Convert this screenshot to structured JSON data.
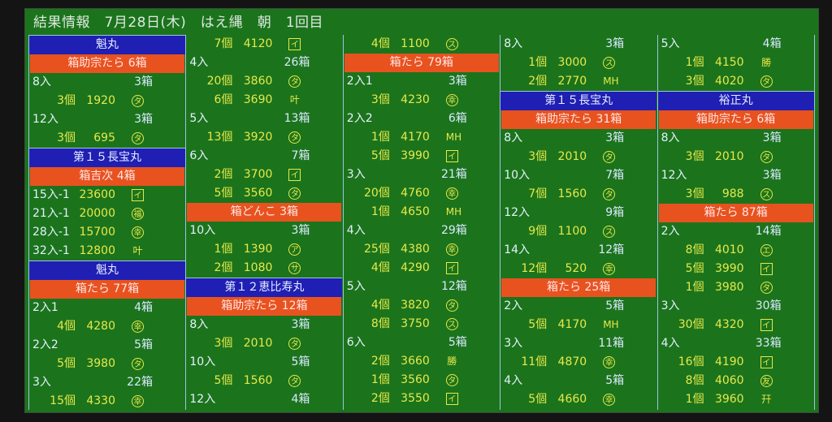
{
  "title": "結果情報　7月28日(木)　はえ縄　朝　1回目",
  "colors": {
    "background": "#1b741c",
    "ship_header": "#1f1fb4",
    "fish_header": "#e8521f",
    "price_text": "#e8e84a",
    "label_text": "#e6f0ff"
  },
  "columns": [
    [
      {
        "t": "ship",
        "text": "魁丸"
      },
      {
        "t": "fish",
        "text": "箱助宗たら 6箱"
      },
      {
        "t": "size",
        "label": "8入",
        "boxes": "3箱"
      },
      {
        "t": "lot",
        "qty": "3個",
        "price": "1920",
        "mark": "タ",
        "ms": "circle"
      },
      {
        "t": "size",
        "label": "12入",
        "boxes": "3箱"
      },
      {
        "t": "lot",
        "qty": "3個",
        "price": "695",
        "mark": "タ",
        "ms": "circle"
      },
      {
        "t": "ship",
        "text": "第１５長宝丸"
      },
      {
        "t": "fish",
        "text": "箱吉次 4箱"
      },
      {
        "t": "lot",
        "label": "15入-1",
        "price": "23600",
        "mark": "イ",
        "ms": "box"
      },
      {
        "t": "lot",
        "label": "21入-1",
        "price": "20000",
        "mark": "福",
        "ms": "circle"
      },
      {
        "t": "lot",
        "label": "28入-1",
        "price": "15700",
        "mark": "幸",
        "ms": "circle"
      },
      {
        "t": "lot",
        "label": "32入-1",
        "price": "12800",
        "mark": "叶",
        "ms": "plain"
      },
      {
        "t": "ship",
        "text": "魁丸"
      },
      {
        "t": "fish",
        "text": "箱たら 77箱"
      },
      {
        "t": "size",
        "label": "2入1",
        "boxes": "4箱"
      },
      {
        "t": "lot",
        "qty": "4個",
        "price": "4280",
        "mark": "幸",
        "ms": "circle"
      },
      {
        "t": "size",
        "label": "2入2",
        "boxes": "5箱"
      },
      {
        "t": "lot",
        "qty": "5個",
        "price": "3980",
        "mark": "タ",
        "ms": "circle"
      },
      {
        "t": "size",
        "label": "3入",
        "boxes": "22箱"
      },
      {
        "t": "lot",
        "qty": "15個",
        "price": "4330",
        "mark": "幸",
        "ms": "circle"
      }
    ],
    [
      {
        "t": "lot",
        "qty": "7個",
        "price": "4120",
        "mark": "イ",
        "ms": "box"
      },
      {
        "t": "size",
        "label": "4入",
        "boxes": "26箱"
      },
      {
        "t": "lot",
        "qty": "20個",
        "price": "3860",
        "mark": "タ",
        "ms": "circle"
      },
      {
        "t": "lot",
        "qty": "6個",
        "price": "3690",
        "mark": "叶",
        "ms": "plain"
      },
      {
        "t": "size",
        "label": "5入",
        "boxes": "13箱"
      },
      {
        "t": "lot",
        "qty": "13個",
        "price": "3920",
        "mark": "タ",
        "ms": "circle"
      },
      {
        "t": "size",
        "label": "6入",
        "boxes": "7箱"
      },
      {
        "t": "lot",
        "qty": "2個",
        "price": "3700",
        "mark": "イ",
        "ms": "box"
      },
      {
        "t": "lot",
        "qty": "5個",
        "price": "3560",
        "mark": "タ",
        "ms": "circle"
      },
      {
        "t": "fish",
        "text": "箱どんこ 3箱"
      },
      {
        "t": "size",
        "label": "10入",
        "boxes": "3箱"
      },
      {
        "t": "lot",
        "qty": "1個",
        "price": "1390",
        "mark": "ア",
        "ms": "circle"
      },
      {
        "t": "lot",
        "qty": "2個",
        "price": "1080",
        "mark": "サ",
        "ms": "circle"
      },
      {
        "t": "ship",
        "text": "第１２恵比寿丸"
      },
      {
        "t": "fish",
        "text": "箱助宗たら 12箱"
      },
      {
        "t": "size",
        "label": "8入",
        "boxes": "3箱"
      },
      {
        "t": "lot",
        "qty": "3個",
        "price": "2010",
        "mark": "タ",
        "ms": "circle"
      },
      {
        "t": "size",
        "label": "10入",
        "boxes": "5箱"
      },
      {
        "t": "lot",
        "qty": "5個",
        "price": "1560",
        "mark": "タ",
        "ms": "circle"
      },
      {
        "t": "size",
        "label": "12入",
        "boxes": "4箱"
      }
    ],
    [
      {
        "t": "lot",
        "qty": "4個",
        "price": "1100",
        "mark": "ス",
        "ms": "circle"
      },
      {
        "t": "fish",
        "text": "箱たら 79箱"
      },
      {
        "t": "size",
        "label": "2入1",
        "boxes": "3箱"
      },
      {
        "t": "lot",
        "qty": "3個",
        "price": "4230",
        "mark": "幸",
        "ms": "circle"
      },
      {
        "t": "size",
        "label": "2入2",
        "boxes": "6箱"
      },
      {
        "t": "lot",
        "qty": "1個",
        "price": "4170",
        "mark": "MH",
        "ms": "plain"
      },
      {
        "t": "lot",
        "qty": "5個",
        "price": "3990",
        "mark": "イ",
        "ms": "box"
      },
      {
        "t": "size",
        "label": "3入",
        "boxes": "21箱"
      },
      {
        "t": "lot",
        "qty": "20個",
        "price": "4760",
        "mark": "幸",
        "ms": "circle"
      },
      {
        "t": "lot",
        "qty": "1個",
        "price": "4650",
        "mark": "MH",
        "ms": "plain"
      },
      {
        "t": "size",
        "label": "4入",
        "boxes": "29箱"
      },
      {
        "t": "lot",
        "qty": "25個",
        "price": "4380",
        "mark": "幸",
        "ms": "circle"
      },
      {
        "t": "lot",
        "qty": "4個",
        "price": "4290",
        "mark": "イ",
        "ms": "box"
      },
      {
        "t": "size",
        "label": "5入",
        "boxes": "12箱"
      },
      {
        "t": "lot",
        "qty": "4個",
        "price": "3820",
        "mark": "タ",
        "ms": "circle"
      },
      {
        "t": "lot",
        "qty": "8個",
        "price": "3750",
        "mark": "ス",
        "ms": "circle"
      },
      {
        "t": "size",
        "label": "6入",
        "boxes": "5箱"
      },
      {
        "t": "lot",
        "qty": "2個",
        "price": "3660",
        "mark": "勝",
        "ms": "plain"
      },
      {
        "t": "lot",
        "qty": "1個",
        "price": "3560",
        "mark": "タ",
        "ms": "circle"
      },
      {
        "t": "lot",
        "qty": "2個",
        "price": "3550",
        "mark": "イ",
        "ms": "box"
      }
    ],
    [
      {
        "t": "size",
        "label": "8入",
        "boxes": "3箱"
      },
      {
        "t": "lot",
        "qty": "1個",
        "price": "3000",
        "mark": "ス",
        "ms": "circle"
      },
      {
        "t": "lot",
        "qty": "2個",
        "price": "2770",
        "mark": "MH",
        "ms": "plain"
      },
      {
        "t": "ship",
        "text": "第１５長宝丸"
      },
      {
        "t": "fish",
        "text": "箱助宗たら 31箱"
      },
      {
        "t": "size",
        "label": "8入",
        "boxes": "3箱"
      },
      {
        "t": "lot",
        "qty": "3個",
        "price": "2010",
        "mark": "タ",
        "ms": "circle"
      },
      {
        "t": "size",
        "label": "10入",
        "boxes": "7箱"
      },
      {
        "t": "lot",
        "qty": "7個",
        "price": "1560",
        "mark": "タ",
        "ms": "circle"
      },
      {
        "t": "size",
        "label": "12入",
        "boxes": "9箱"
      },
      {
        "t": "lot",
        "qty": "9個",
        "price": "1100",
        "mark": "ス",
        "ms": "circle"
      },
      {
        "t": "size",
        "label": "14入",
        "boxes": "12箱"
      },
      {
        "t": "lot",
        "qty": "12個",
        "price": "520",
        "mark": "幸",
        "ms": "circle"
      },
      {
        "t": "fish",
        "text": "箱たら 25箱"
      },
      {
        "t": "size",
        "label": "2入",
        "boxes": "5箱"
      },
      {
        "t": "lot",
        "qty": "5個",
        "price": "4170",
        "mark": "MH",
        "ms": "plain"
      },
      {
        "t": "size",
        "label": "3入",
        "boxes": "11箱"
      },
      {
        "t": "lot",
        "qty": "11個",
        "price": "4870",
        "mark": "幸",
        "ms": "circle"
      },
      {
        "t": "size",
        "label": "4入",
        "boxes": "5箱"
      },
      {
        "t": "lot",
        "qty": "5個",
        "price": "4660",
        "mark": "幸",
        "ms": "circle"
      }
    ],
    [
      {
        "t": "size",
        "label": "5入",
        "boxes": "4箱"
      },
      {
        "t": "lot",
        "qty": "1個",
        "price": "4150",
        "mark": "勝",
        "ms": "plain"
      },
      {
        "t": "lot",
        "qty": "3個",
        "price": "4020",
        "mark": "タ",
        "ms": "circle"
      },
      {
        "t": "ship",
        "text": "裕正丸"
      },
      {
        "t": "fish",
        "text": "箱助宗たら 6箱"
      },
      {
        "t": "size",
        "label": "8入",
        "boxes": "3箱"
      },
      {
        "t": "lot",
        "qty": "3個",
        "price": "2010",
        "mark": "タ",
        "ms": "circle"
      },
      {
        "t": "size",
        "label": "12入",
        "boxes": "3箱"
      },
      {
        "t": "lot",
        "qty": "3個",
        "price": "988",
        "mark": "ス",
        "ms": "circle"
      },
      {
        "t": "fish",
        "text": "箱たら 87箱"
      },
      {
        "t": "size",
        "label": "2入",
        "boxes": "14箱"
      },
      {
        "t": "lot",
        "qty": "8個",
        "price": "4010",
        "mark": "エ",
        "ms": "circle"
      },
      {
        "t": "lot",
        "qty": "5個",
        "price": "3990",
        "mark": "イ",
        "ms": "box"
      },
      {
        "t": "lot",
        "qty": "1個",
        "price": "3980",
        "mark": "タ",
        "ms": "circle"
      },
      {
        "t": "size",
        "label": "3入",
        "boxes": "30箱"
      },
      {
        "t": "lot",
        "qty": "30個",
        "price": "4320",
        "mark": "イ",
        "ms": "box"
      },
      {
        "t": "size",
        "label": "4入",
        "boxes": "33箱"
      },
      {
        "t": "lot",
        "qty": "16個",
        "price": "4190",
        "mark": "イ",
        "ms": "box"
      },
      {
        "t": "lot",
        "qty": "8個",
        "price": "4060",
        "mark": "友",
        "ms": "circle"
      },
      {
        "t": "lot",
        "qty": "1個",
        "price": "3960",
        "mark": "幵",
        "ms": "plain"
      }
    ]
  ]
}
